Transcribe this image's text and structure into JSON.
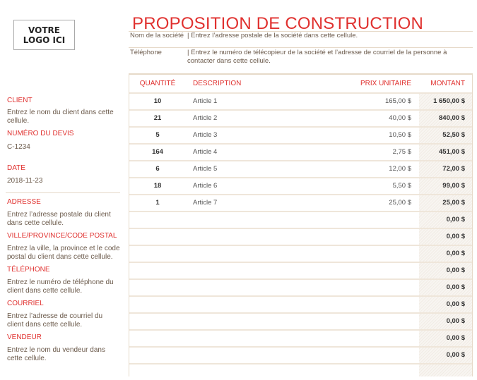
{
  "logo": "VOTRE LOGO ICI",
  "title": "PROPOSITION DE CONSTRUCTION",
  "company": {
    "name_label": "Nom de la société",
    "name_value": "| Entrez l’adresse postale de la société dans cette cellule.",
    "phone_label": "Téléphone",
    "phone_value": "| Entrez le numéro de télécopieur de la société et l’adresse de courriel de la personne à contacter dans cette cellule."
  },
  "sidebar": {
    "client_label": "CLIENT",
    "client_value": "Entrez le nom du client dans cette cellule.",
    "quote_label": "NUMÉRO DU DEVIS",
    "quote_value": "C-1234",
    "date_label": "DATE",
    "date_value": "2018-11-23",
    "address_label": "ADRESSE",
    "address_value": "Entrez l’adresse postale du client dans cette cellule.",
    "city_label": "VILLE/PROVINCE/CODE POSTAL",
    "city_value": "Entrez la ville, la province et le code postal du client dans cette cellule.",
    "phone_label": "TÉLÉPHONE",
    "phone_value": "Entrez le numéro de téléphone du client dans cette cellule.",
    "email_label": "COURRIEL",
    "email_value": "Entrez l’adresse de courriel du client dans cette cellule.",
    "seller_label": "VENDEUR",
    "seller_value": "Entrez le nom du vendeur dans cette cellule."
  },
  "table": {
    "headers": {
      "qty": "QUANTITÉ",
      "desc": "DESCRIPTION",
      "price": "PRIX UNITAIRE",
      "amount": "MONTANT"
    },
    "rows": [
      {
        "qty": "10",
        "desc": "Article 1",
        "price": "165,00 $",
        "amount": "1 650,00 $"
      },
      {
        "qty": "21",
        "desc": "Article 2",
        "price": "40,00 $",
        "amount": "840,00 $"
      },
      {
        "qty": "5",
        "desc": "Article 3",
        "price": "10,50 $",
        "amount": "52,50 $"
      },
      {
        "qty": "164",
        "desc": "Article 4",
        "price": "2,75 $",
        "amount": "451,00 $"
      },
      {
        "qty": "6",
        "desc": "Article 5",
        "price": "12,00 $",
        "amount": "72,00 $"
      },
      {
        "qty": "18",
        "desc": "Article 6",
        "price": "5,50 $",
        "amount": "99,00 $"
      },
      {
        "qty": "1",
        "desc": "Article 7",
        "price": "25,00 $",
        "amount": "25,00 $"
      },
      {
        "qty": "",
        "desc": "",
        "price": "",
        "amount": "0,00 $"
      },
      {
        "qty": "",
        "desc": "",
        "price": "",
        "amount": "0,00 $"
      },
      {
        "qty": "",
        "desc": "",
        "price": "",
        "amount": "0,00 $"
      },
      {
        "qty": "",
        "desc": "",
        "price": "",
        "amount": "0,00 $"
      },
      {
        "qty": "",
        "desc": "",
        "price": "",
        "amount": "0,00 $"
      },
      {
        "qty": "",
        "desc": "",
        "price": "",
        "amount": "0,00 $"
      },
      {
        "qty": "",
        "desc": "",
        "price": "",
        "amount": "0,00 $"
      },
      {
        "qty": "",
        "desc": "",
        "price": "",
        "amount": "0,00 $"
      },
      {
        "qty": "",
        "desc": "",
        "price": "",
        "amount": "0,00 $"
      },
      {
        "qty": "",
        "desc": "",
        "price": "",
        "amount": ""
      }
    ]
  }
}
